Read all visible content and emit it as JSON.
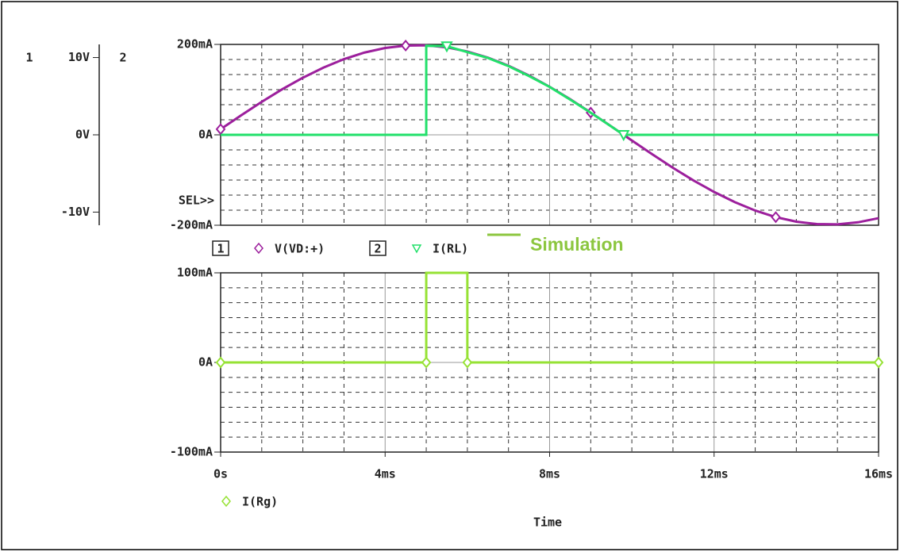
{
  "chart_data": [
    {
      "type": "line",
      "y_axis_label": "2",
      "y2_axis_label": "1",
      "selector": "SEL>>",
      "annotation": "Simulation",
      "annotation_color": "#8cc63f",
      "xlim": [
        0,
        16
      ],
      "xticks": [
        0,
        4,
        8,
        12,
        16
      ],
      "ylim": [
        -200,
        200
      ],
      "yticks": [
        {
          "value": -200,
          "label": "-200mA"
        },
        {
          "value": 0,
          "label": "0A"
        },
        {
          "value": 200,
          "label": "200mA"
        }
      ],
      "y2lim": [
        -11.7,
        11.7
      ],
      "y2ticks": [
        {
          "value": -10,
          "label": "-10V"
        },
        {
          "value": 0,
          "label": "0V"
        },
        {
          "value": 10,
          "label": "10V"
        }
      ],
      "grid": true,
      "series": [
        {
          "name": "V(VD:+)",
          "color": "#9c1f9c",
          "axis": "y2",
          "x": [
            0,
            0.5,
            1,
            1.5,
            2,
            2.5,
            3,
            3.5,
            4,
            4.5,
            5,
            5.5,
            6,
            6.5,
            7,
            7.5,
            8,
            8.5,
            9,
            9.5,
            10,
            10.5,
            11,
            11.5,
            12,
            12.5,
            13,
            13.5,
            14,
            14.5,
            15,
            15.5,
            16
          ],
          "values": [
            0.73,
            2.53,
            4.27,
            5.91,
            7.39,
            8.7,
            9.8,
            10.65,
            11.24,
            11.55,
            11.58,
            11.32,
            10.78,
            9.99,
            8.94,
            7.67,
            6.22,
            4.61,
            2.88,
            1.09,
            -0.73,
            -2.53,
            -4.27,
            -5.91,
            -7.39,
            -8.7,
            -9.8,
            -10.65,
            -11.24,
            -11.55,
            -11.58,
            -11.32,
            -10.78
          ]
        },
        {
          "name": "I(RL)",
          "color": "#22e06a",
          "x": [
            0,
            5,
            5,
            5.5,
            6,
            6.5,
            7,
            7.5,
            8,
            8.5,
            9,
            9.5,
            9.8,
            16
          ],
          "values": [
            0,
            0,
            197,
            196,
            183,
            170,
            152,
            130,
            106,
            78,
            49,
            18.5,
            0,
            0
          ]
        }
      ]
    },
    {
      "type": "line",
      "xlabel": "Time",
      "xlim": [
        0,
        16
      ],
      "xticks": [
        {
          "value": 0,
          "label": "0s"
        },
        {
          "value": 4,
          "label": "4ms"
        },
        {
          "value": 8,
          "label": "8ms"
        },
        {
          "value": 12,
          "label": "12ms"
        },
        {
          "value": 16,
          "label": "16ms"
        }
      ],
      "ylim": [
        -100,
        100
      ],
      "yticks": [
        {
          "value": -100,
          "label": "-100mA"
        },
        {
          "value": 0,
          "label": "0A"
        },
        {
          "value": 100,
          "label": "100mA"
        }
      ],
      "grid": true,
      "series": [
        {
          "name": "I(Rg)",
          "color": "#96e234",
          "x": [
            0,
            5,
            5,
            6,
            6,
            16
          ],
          "values": [
            0,
            0,
            100,
            100,
            0,
            0
          ]
        }
      ]
    }
  ]
}
